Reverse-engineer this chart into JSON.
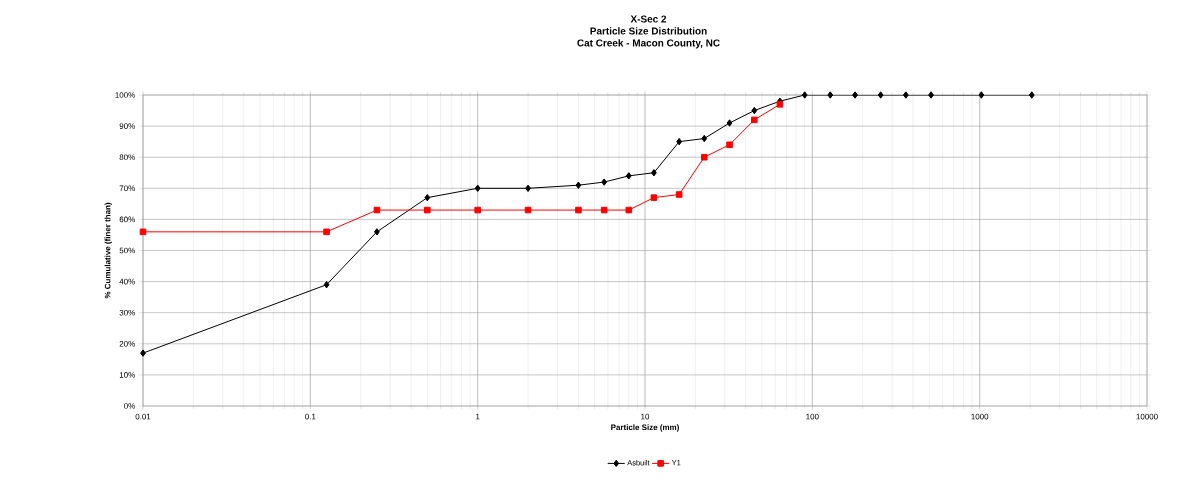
{
  "chart_data": {
    "type": "line",
    "title": "X-Sec 2",
    "subtitle": "Particle Size Distribution",
    "annotations": [
      "Cat Creek - Macon County, NC"
    ],
    "xlabel": "Particle Size (mm)",
    "ylabel": "% Cumulative (finer than)",
    "log": "x",
    "grid": true,
    "legend": "bottom",
    "xlim": [
      0.01,
      10000
    ],
    "xticks": [
      0.01,
      0.1,
      1,
      10,
      100,
      1000,
      10000
    ],
    "ylim": [
      0,
      100
    ],
    "yticks": [
      {
        "value": 0,
        "label": "0%"
      },
      {
        "value": 10,
        "label": "10%"
      },
      {
        "value": 20,
        "label": "20%"
      },
      {
        "value": 30,
        "label": "30%"
      },
      {
        "value": 40,
        "label": "40%"
      },
      {
        "value": 50,
        "label": "50%"
      },
      {
        "value": 60,
        "label": "60%"
      },
      {
        "value": 70,
        "label": "70%"
      },
      {
        "value": 80,
        "label": "80%"
      },
      {
        "value": 90,
        "label": "90%"
      },
      {
        "value": 100,
        "label": "100%"
      }
    ],
    "series": [
      {
        "name": "Asbuilt",
        "color": "#000000",
        "marker": "diamond",
        "x": [
          0.01,
          0.125,
          0.25,
          0.5,
          1,
          2,
          4,
          5.7,
          8,
          11.3,
          16,
          22.6,
          32,
          45,
          64,
          90,
          128,
          180,
          256,
          362,
          512,
          1024,
          2048
        ],
        "values": [
          17,
          39,
          56,
          67,
          70,
          70,
          71,
          72,
          74,
          75,
          85,
          86,
          91,
          95,
          98,
          100,
          100,
          100,
          100,
          100,
          100,
          100,
          100
        ]
      },
      {
        "name": "Y1",
        "color": "#ff0000",
        "marker": "square",
        "x": [
          0.01,
          0.125,
          0.25,
          0.5,
          1,
          2,
          4,
          5.7,
          8,
          11.3,
          16,
          22.6,
          32,
          45,
          64
        ],
        "values": [
          56,
          56,
          63,
          63,
          63,
          63,
          63,
          63,
          63,
          67,
          68,
          80,
          84,
          92,
          97
        ]
      }
    ]
  }
}
